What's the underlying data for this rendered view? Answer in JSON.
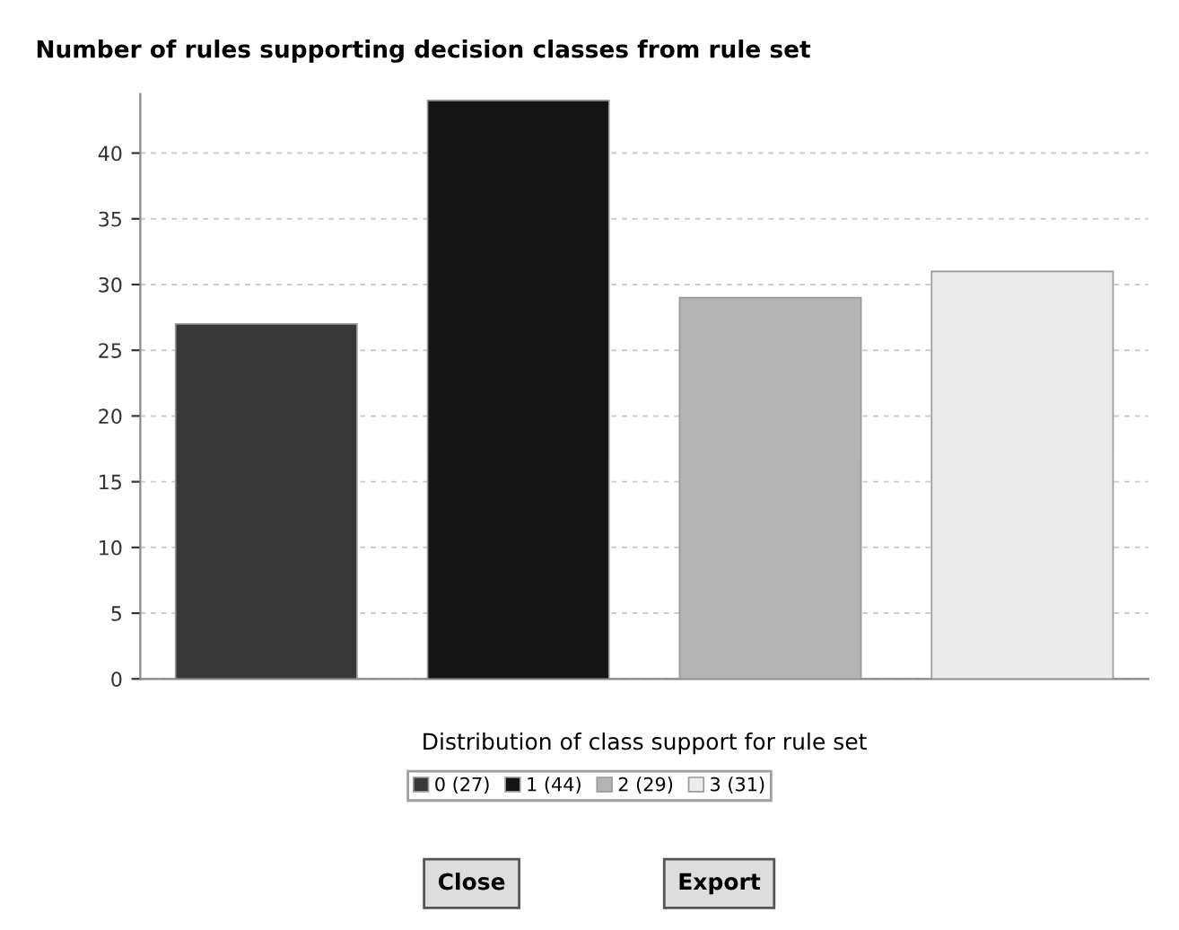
{
  "chart_data": {
    "type": "bar",
    "title": "Number of rules supporting decision classes from rule set",
    "xlabel": "Distribution of class support for rule set",
    "categories": [
      null,
      null,
      null,
      null
    ],
    "series": [
      {
        "name": "0 (27)",
        "color": "#383838",
        "values": [
          27,
          null,
          null,
          null
        ]
      },
      {
        "name": "1 (44)",
        "color": "#141414",
        "values": [
          null,
          44,
          null,
          null
        ]
      },
      {
        "name": "2 (29)",
        "color": "#b4b4b4",
        "values": [
          null,
          null,
          29,
          null
        ]
      },
      {
        "name": "3 (31)",
        "color": "#ececec",
        "values": [
          null,
          null,
          null,
          31
        ]
      }
    ],
    "ylim": [
      0,
      44.5
    ],
    "yticks": [
      0,
      5,
      10,
      15,
      20,
      25,
      30,
      35,
      40
    ],
    "grid": "y",
    "legend": "bottom",
    "annotations": [
      "Close",
      "Export"
    ]
  }
}
